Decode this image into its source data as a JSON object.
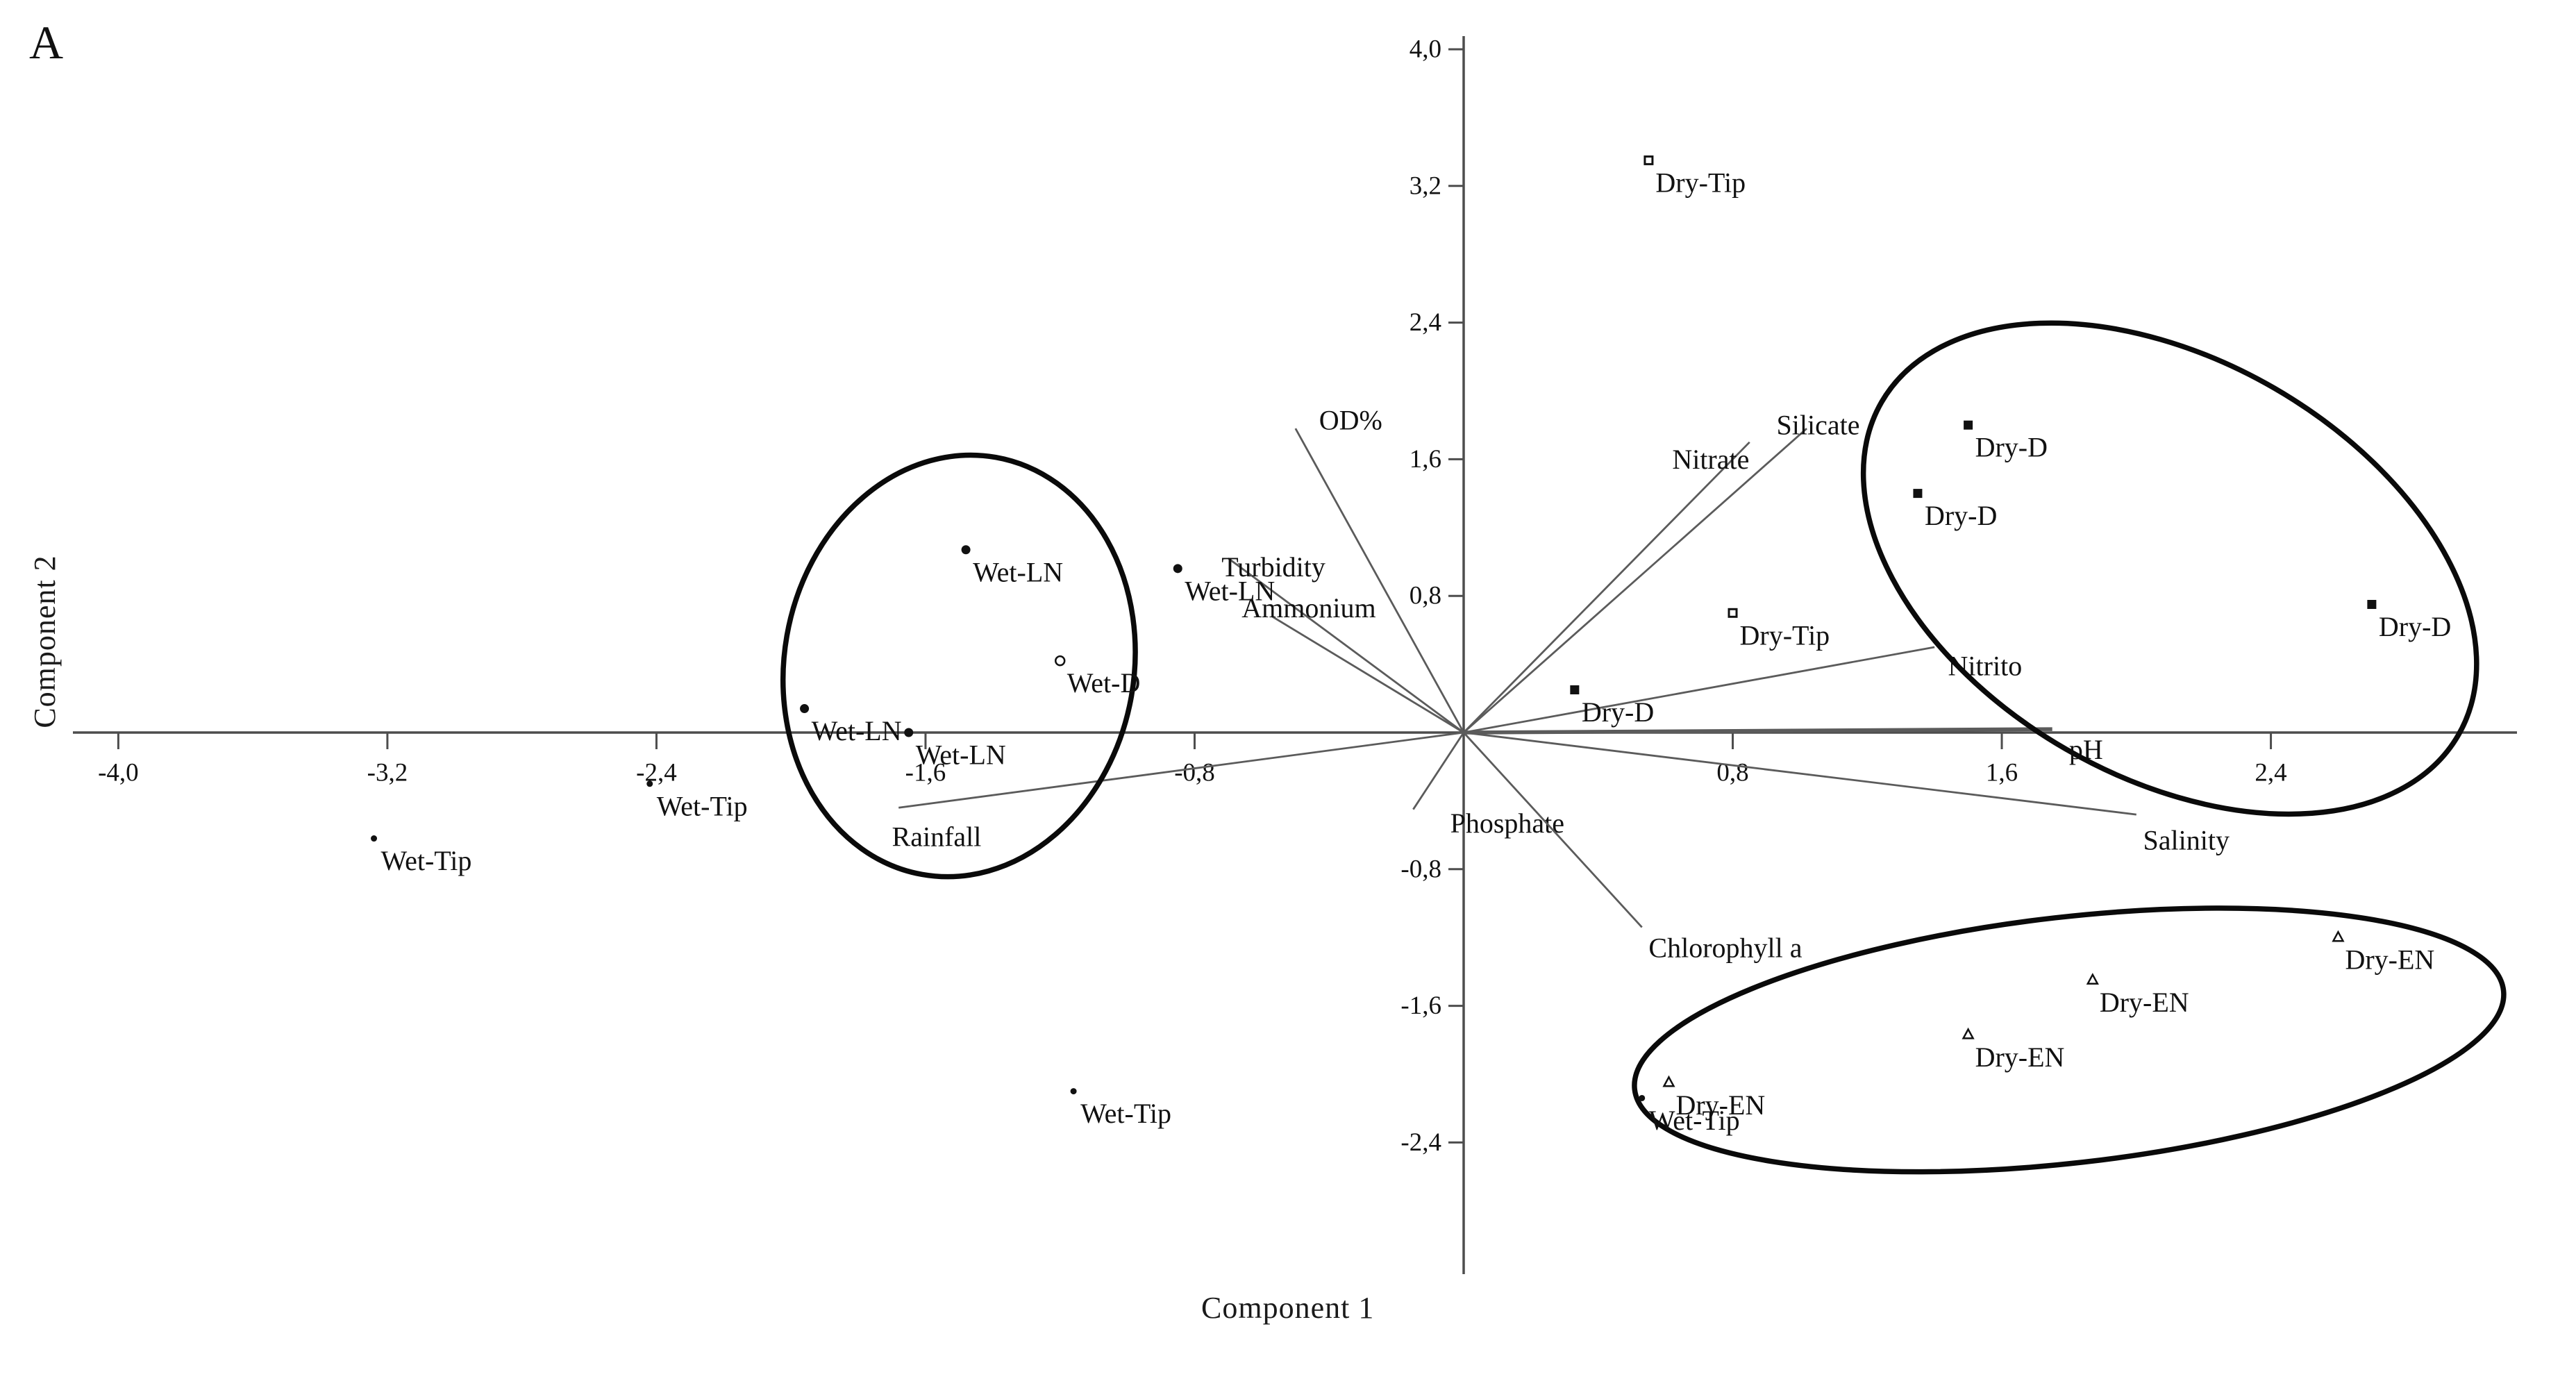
{
  "panel_label": "A",
  "colors": {
    "background": "#ffffff",
    "text": "#111111",
    "axis_line": "#4d4d4d",
    "vector_line": "#5b5b5b",
    "ellipse": "#0a0a0a"
  },
  "chart_data": {
    "type": "scatter",
    "subtype": "pca-biplot",
    "title": "",
    "xlabel": "Component 1",
    "ylabel": "Component 2",
    "xlim": [
      -4.45,
      3.1
    ],
    "ylim": [
      -3.1,
      4.15
    ],
    "grid": false,
    "legend": "none",
    "decimal_style": "comma",
    "x_ticks": [
      {
        "value": -4.0,
        "label": "-4,0"
      },
      {
        "value": -3.2,
        "label": "-3,2"
      },
      {
        "value": -2.4,
        "label": "-2,4"
      },
      {
        "value": -1.6,
        "label": "-1,6"
      },
      {
        "value": -0.8,
        "label": "-0,8"
      },
      {
        "value": 0.8,
        "label": "0,8"
      },
      {
        "value": 1.6,
        "label": "1,6"
      },
      {
        "value": 2.4,
        "label": "2,4"
      }
    ],
    "y_ticks": [
      {
        "value": 4.0,
        "label": "4,0"
      },
      {
        "value": 3.2,
        "label": "3,2"
      },
      {
        "value": 2.4,
        "label": "2,4"
      },
      {
        "value": 1.6,
        "label": "1,6"
      },
      {
        "value": 0.8,
        "label": "0,8"
      },
      {
        "value": -0.8,
        "label": "-0,8"
      },
      {
        "value": -1.6,
        "label": "-1,6"
      },
      {
        "value": -2.4,
        "label": "-2,4"
      }
    ],
    "markers": {
      "Wet-Tip": {
        "shape": "dot-filled",
        "icon": "tiny-dot-marker"
      },
      "Wet-LN": {
        "shape": "circle-filled",
        "icon": "filled-circle-marker"
      },
      "Wet-D": {
        "shape": "circle-open",
        "icon": "open-circle-marker"
      },
      "Dry-Tip": {
        "shape": "square-open-small",
        "icon": "small-square-marker"
      },
      "Dry-D": {
        "shape": "square-filled",
        "icon": "filled-square-marker"
      },
      "Dry-EN": {
        "shape": "triangle-open",
        "icon": "open-triangle-marker"
      }
    },
    "samples": [
      {
        "label": "Dry-Tip",
        "x": 0.55,
        "y": 3.35
      },
      {
        "label": "Dry-D",
        "x": 1.5,
        "y": 1.8
      },
      {
        "label": "Dry-D",
        "x": 1.35,
        "y": 1.4
      },
      {
        "label": "Dry-D",
        "x": 2.7,
        "y": 0.75
      },
      {
        "label": "Dry-Tip",
        "x": 0.8,
        "y": 0.7
      },
      {
        "label": "Dry-D",
        "x": 0.33,
        "y": 0.25
      },
      {
        "label": "Wet-LN",
        "x": -1.48,
        "y": 1.07
      },
      {
        "label": "Wet-LN",
        "x": -0.85,
        "y": 0.96
      },
      {
        "label": "Wet-D",
        "x": -1.2,
        "y": 0.42
      },
      {
        "label": "Wet-LN",
        "x": -1.96,
        "y": 0.14
      },
      {
        "label": "Wet-LN",
        "x": -1.65,
        "y": 0.0
      },
      {
        "label": "Wet-Tip",
        "x": -2.42,
        "y": -0.3
      },
      {
        "label": "Wet-Tip",
        "x": -3.24,
        "y": -0.62
      },
      {
        "label": "Wet-Tip",
        "x": -1.16,
        "y": -2.1
      },
      {
        "label": "Wet-Tip",
        "x": 0.53,
        "y": -2.14
      },
      {
        "label": "Dry-EN",
        "x": 0.61,
        "y": -2.05
      },
      {
        "label": "Dry-EN",
        "x": 1.5,
        "y": -1.77
      },
      {
        "label": "Dry-EN",
        "x": 1.87,
        "y": -1.45
      },
      {
        "label": "Dry-EN",
        "x": 2.6,
        "y": -1.2
      }
    ],
    "loading_vectors": [
      {
        "label": "OD%",
        "x": -0.5,
        "y": 1.78,
        "label_x": -0.43,
        "label_y": 1.83
      },
      {
        "label": "Nitrate",
        "x": 0.85,
        "y": 1.7,
        "label_x": 0.62,
        "label_y": 1.6
      },
      {
        "label": "Silicate",
        "x": 1.02,
        "y": 1.78,
        "label_x": 0.93,
        "label_y": 1.8
      },
      {
        "label": "Turbidity",
        "x": -0.7,
        "y": 1.02,
        "label_x": -0.72,
        "label_y": 0.97
      },
      {
        "label": "Ammonium",
        "x": -0.57,
        "y": 0.68,
        "label_x": -0.66,
        "label_y": 0.73
      },
      {
        "label": "Nitrito",
        "x": 1.4,
        "y": 0.5,
        "label_x": 1.44,
        "label_y": 0.39
      },
      {
        "label": "pH",
        "x": 1.75,
        "y": 0.02,
        "label_x": 1.8,
        "label_y": -0.1,
        "thick": true
      },
      {
        "label": "Salinity",
        "x": 2.0,
        "y": -0.48,
        "label_x": 2.02,
        "label_y": -0.63
      },
      {
        "label": "Phosphate",
        "x": -0.15,
        "y": -0.45,
        "label_x": -0.04,
        "label_y": -0.53
      },
      {
        "label": "Chlorophyll a",
        "x": 0.53,
        "y": -1.14,
        "label_x": 0.55,
        "label_y": -1.26
      },
      {
        "label": "Rainfall",
        "x": -1.68,
        "y": -0.44,
        "label_x": -1.7,
        "label_y": -0.61
      }
    ],
    "cluster_ellipses": [
      {
        "name": "wet-cluster",
        "cx": -1.5,
        "cy": 0.39,
        "rx": 0.52,
        "ry": 1.24,
        "rotate_deg": 10
      },
      {
        "name": "dry-d-cluster",
        "cx": 2.1,
        "cy": 0.96,
        "rx": 0.99,
        "ry": 1.22,
        "rotate_deg": 30
      },
      {
        "name": "dry-en-cluster",
        "cx": 1.8,
        "cy": -1.8,
        "rx": 1.3,
        "ry": 0.72,
        "rotate_deg": -6.5
      }
    ]
  }
}
